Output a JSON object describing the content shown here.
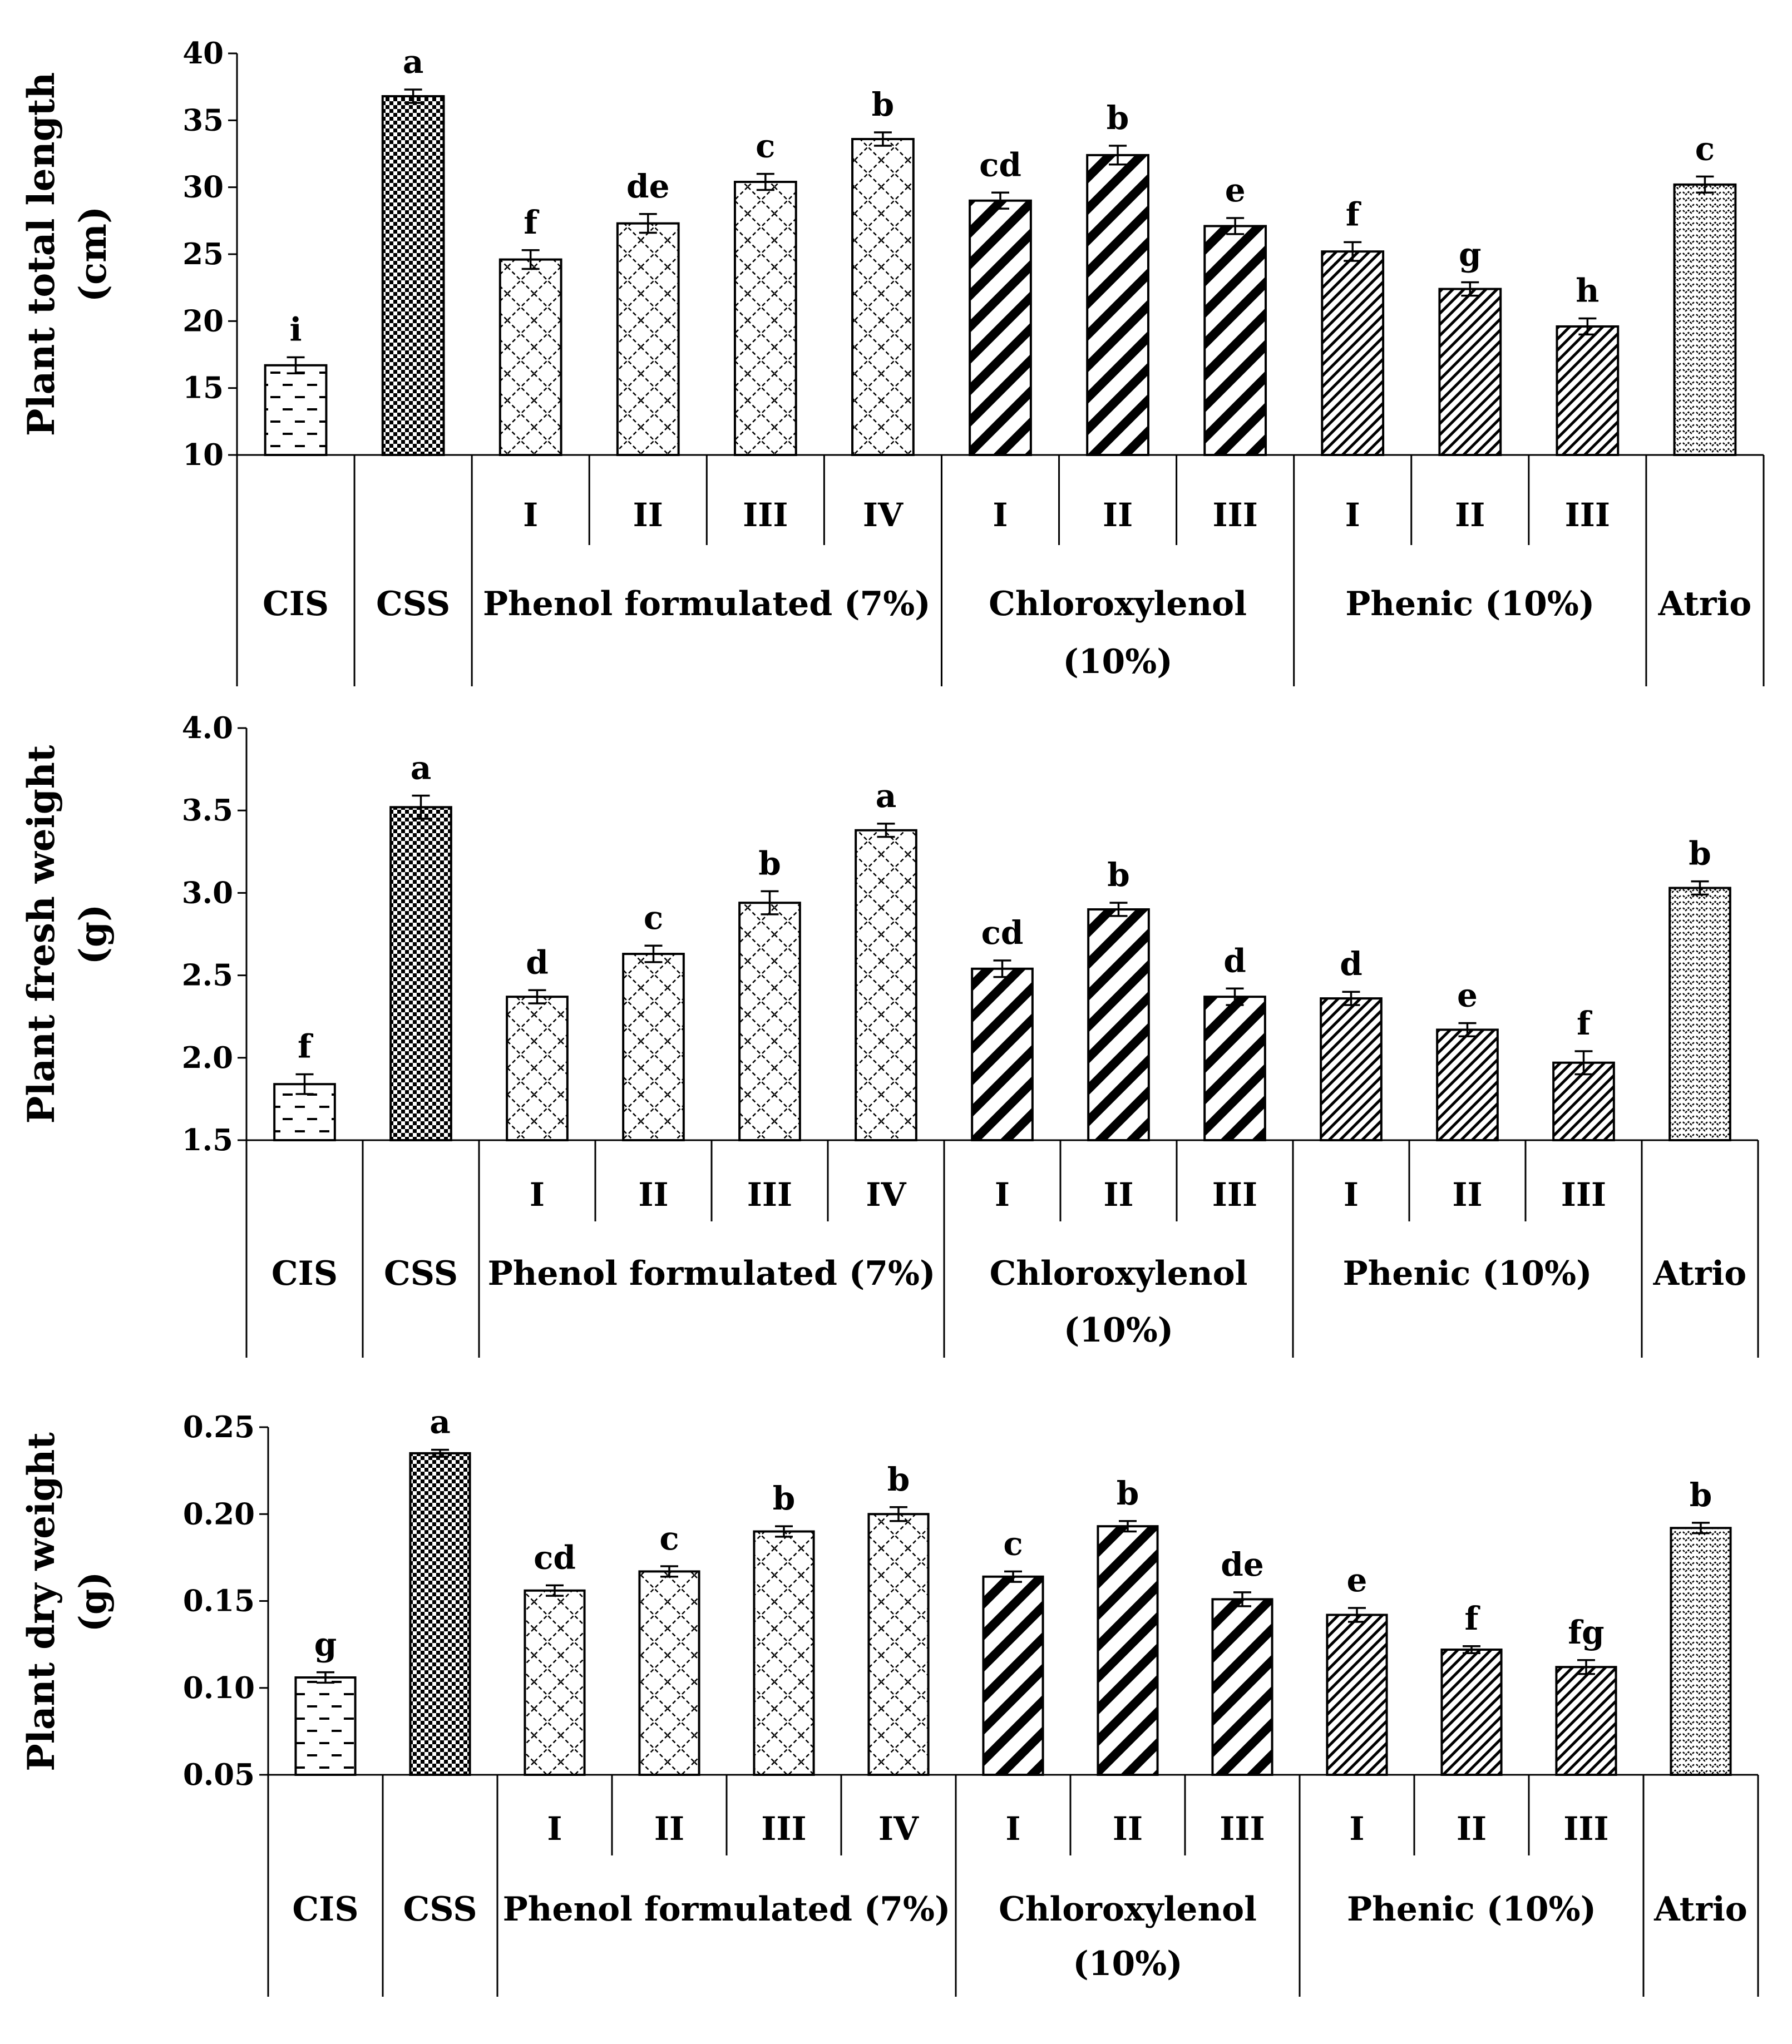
{
  "chart_data": [
    {
      "type": "bar",
      "ylabel_lines": [
        "Plant total length",
        "(cm)"
      ],
      "ylim": [
        10,
        40
      ],
      "yticks": [
        10,
        15,
        20,
        25,
        30,
        35,
        40
      ],
      "tick_decimals": 0,
      "values": [
        16.7,
        36.8,
        24.6,
        27.3,
        30.4,
        33.6,
        29.0,
        32.4,
        27.1,
        25.2,
        22.4,
        19.6,
        30.2
      ],
      "errors": [
        0.6,
        0.5,
        0.7,
        0.7,
        0.6,
        0.5,
        0.6,
        0.7,
        0.6,
        0.7,
        0.5,
        0.6,
        0.6
      ],
      "letters": [
        "i",
        "a",
        "f",
        "de",
        "c",
        "b",
        "cd",
        "b",
        "e",
        "f",
        "g",
        "h",
        "c"
      ]
    },
    {
      "type": "bar",
      "ylabel_lines": [
        "Plant fresh weight",
        "(g)"
      ],
      "ylim": [
        1.5,
        4.0
      ],
      "yticks": [
        1.5,
        2.0,
        2.5,
        3.0,
        3.5,
        4.0
      ],
      "tick_decimals": 1,
      "values": [
        1.84,
        3.52,
        2.37,
        2.63,
        2.94,
        3.38,
        2.54,
        2.9,
        2.37,
        2.36,
        2.17,
        1.97,
        3.03
      ],
      "errors": [
        0.06,
        0.07,
        0.04,
        0.05,
        0.07,
        0.04,
        0.05,
        0.04,
        0.05,
        0.04,
        0.04,
        0.07,
        0.04
      ],
      "letters": [
        "f",
        "a",
        "d",
        "c",
        "b",
        "a",
        "cd",
        "b",
        "d",
        "d",
        "e",
        "f",
        "b"
      ]
    },
    {
      "type": "bar",
      "ylabel_lines": [
        "Plant dry weight",
        "(g)"
      ],
      "ylim": [
        0.05,
        0.25
      ],
      "yticks": [
        0.05,
        0.1,
        0.15,
        0.2,
        0.25
      ],
      "tick_decimals": 2,
      "values": [
        0.106,
        0.235,
        0.156,
        0.167,
        0.19,
        0.2,
        0.164,
        0.193,
        0.151,
        0.142,
        0.122,
        0.112,
        0.192
      ],
      "errors": [
        0.003,
        0.002,
        0.003,
        0.003,
        0.003,
        0.004,
        0.003,
        0.003,
        0.004,
        0.004,
        0.002,
        0.004,
        0.003
      ],
      "letters": [
        "g",
        "a",
        "cd",
        "c",
        "b",
        "b",
        "c",
        "b",
        "de",
        "e",
        "f",
        "fg",
        "b"
      ]
    }
  ],
  "categories": {
    "sub_labels": [
      "",
      "",
      "I",
      "II",
      "III",
      "IV",
      "I",
      "II",
      "III",
      "I",
      "II",
      "III",
      ""
    ],
    "groups": [
      {
        "lines": [
          "CIS"
        ],
        "start": 0,
        "end": 0
      },
      {
        "lines": [
          "CSS"
        ],
        "start": 1,
        "end": 1
      },
      {
        "lines": [
          "Phenol formulated (7%)"
        ],
        "start": 2,
        "end": 5
      },
      {
        "lines": [
          "Chloroxylenol",
          "(10%)"
        ],
        "start": 6,
        "end": 8
      },
      {
        "lines": [
          "Phenic (10%)"
        ],
        "start": 9,
        "end": 11
      },
      {
        "lines": [
          "Atrio"
        ],
        "start": 12,
        "end": 12
      }
    ]
  },
  "patterns": [
    "dash",
    "dots",
    "diamond",
    "diamond",
    "diamond",
    "diamond",
    "stripe-bold",
    "stripe-bold",
    "stripe-bold",
    "stripe-fine",
    "stripe-fine",
    "stripe-fine",
    "zigzag"
  ]
}
